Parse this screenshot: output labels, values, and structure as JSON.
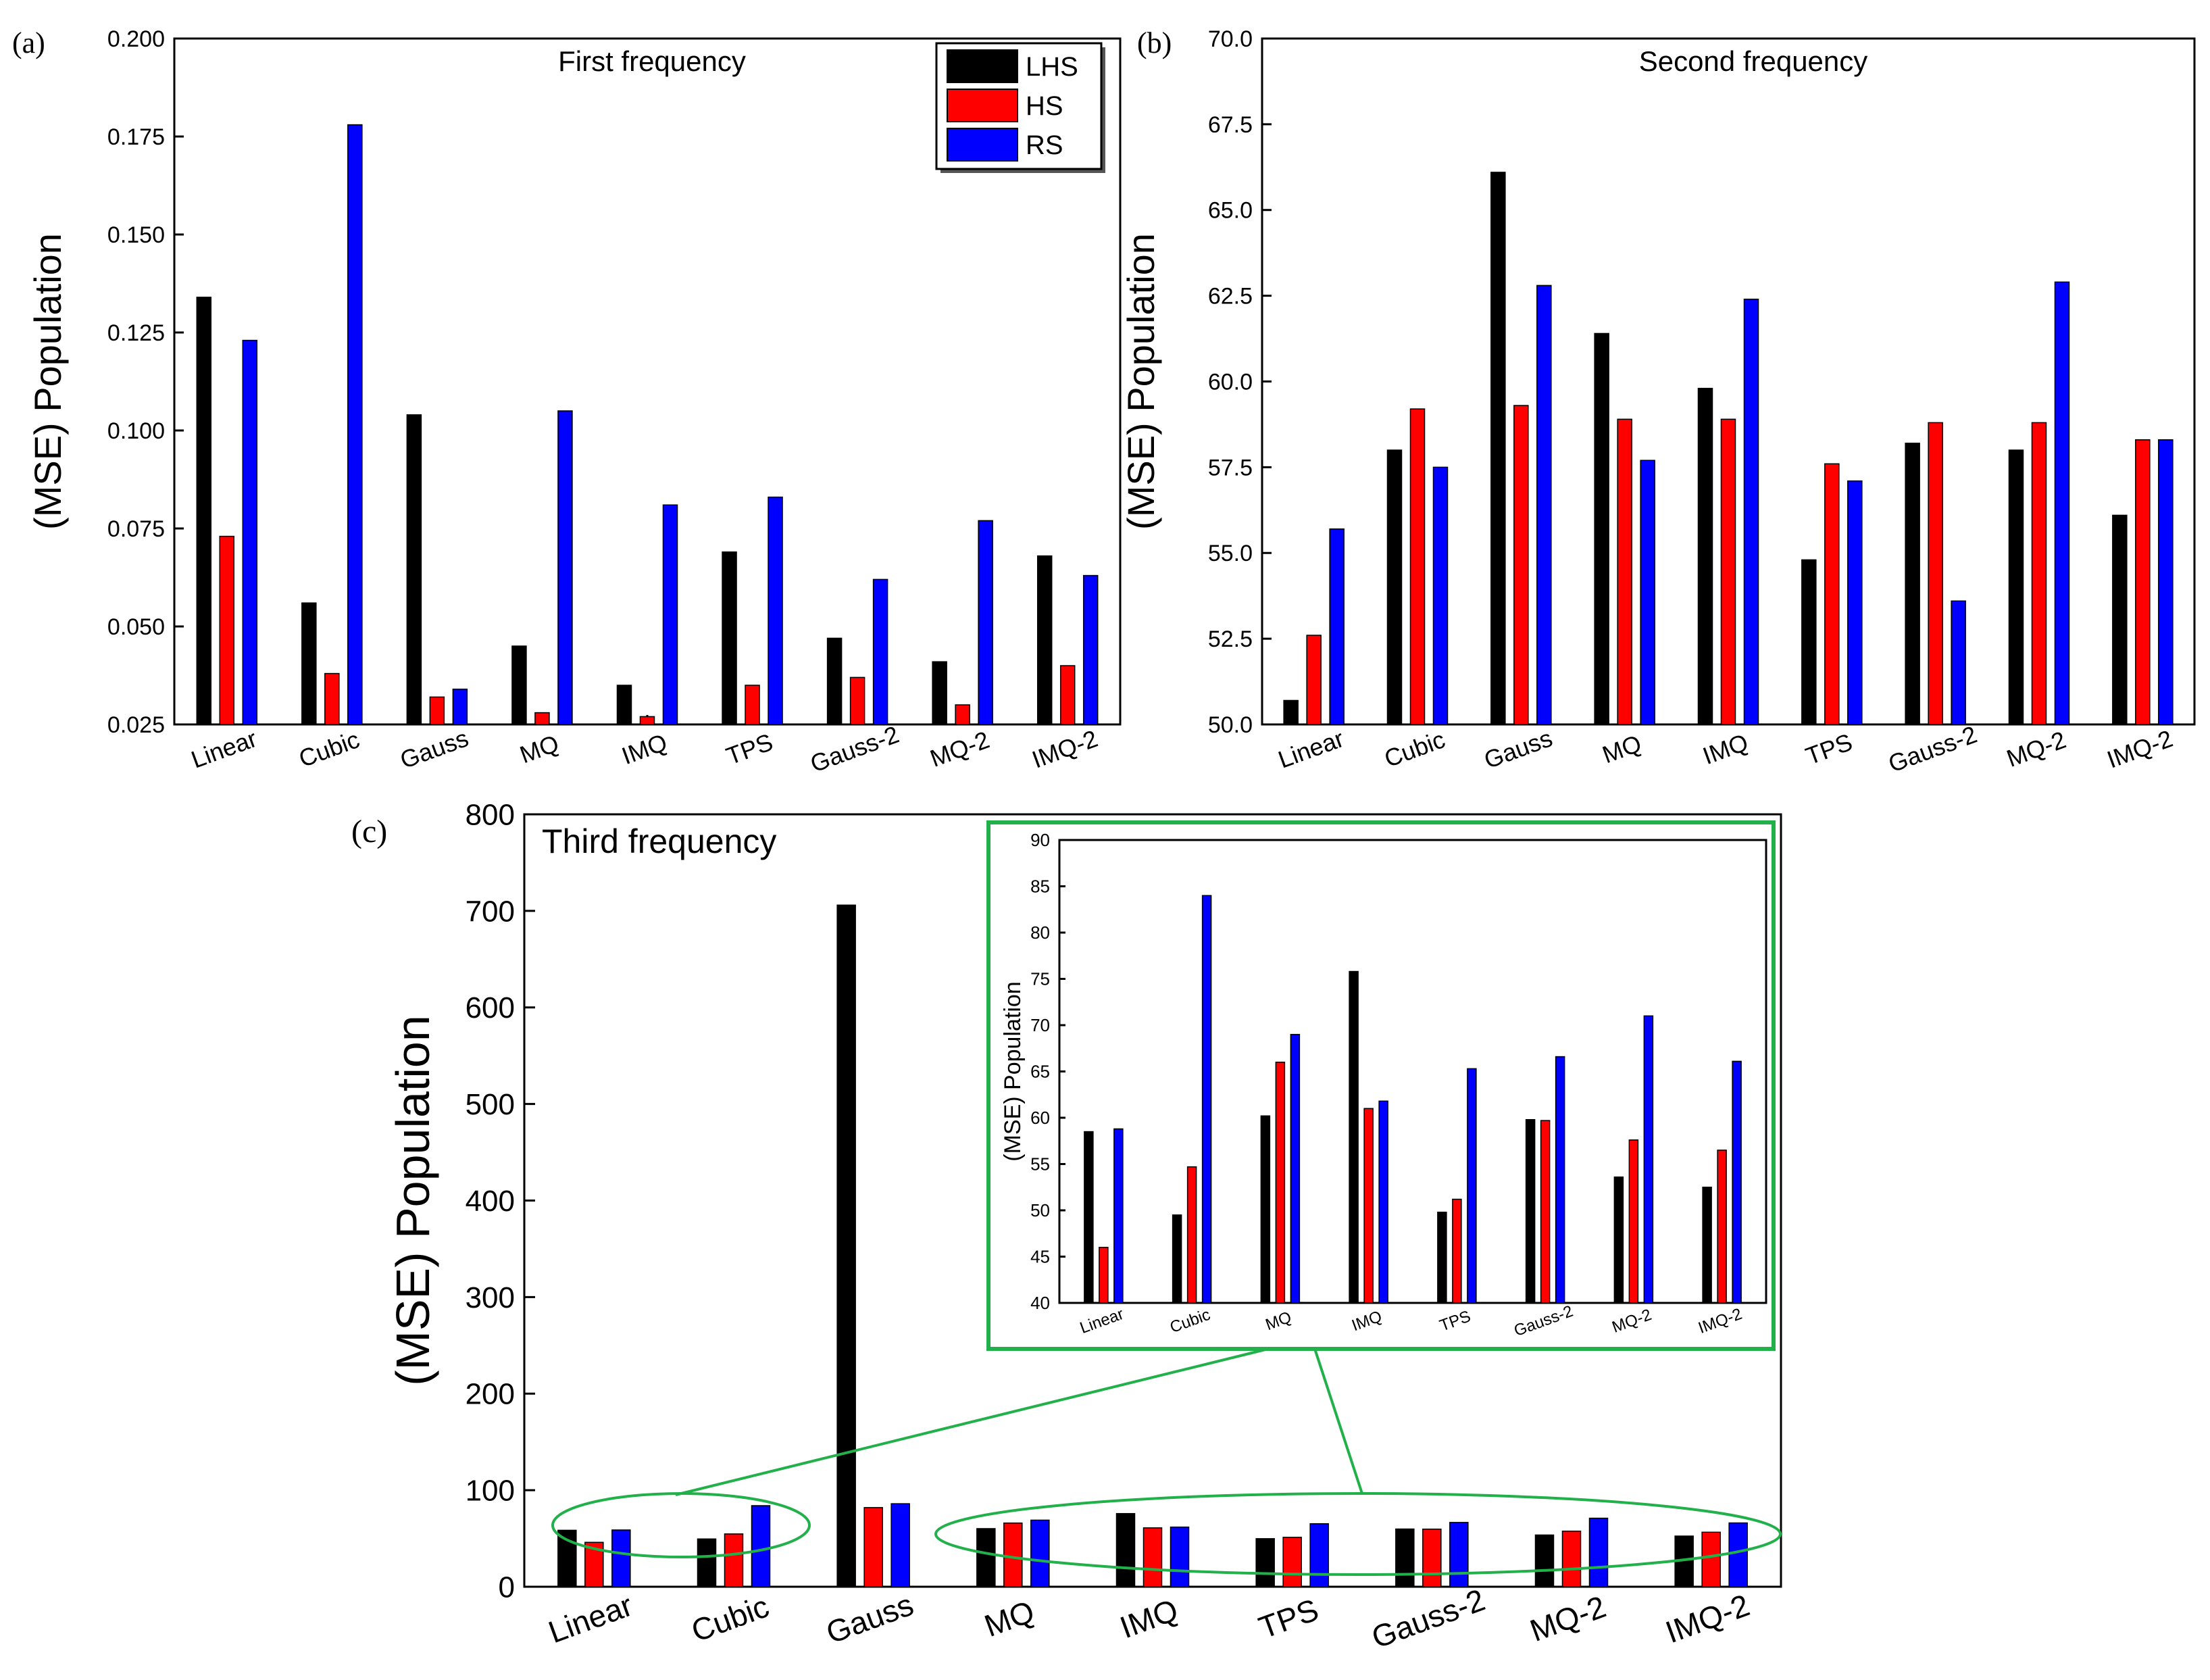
{
  "colors": {
    "LHS": "#000000",
    "HS": "#ff0000",
    "RS": "#0000ff",
    "accent": "#22b04a"
  },
  "legend": [
    "LHS",
    "HS",
    "RS"
  ],
  "chart_data": [
    {
      "id": "a",
      "panel_label": "(a)",
      "type": "bar",
      "title": "First frequency",
      "ylabel": "(MSE) Population",
      "xlabel": "",
      "ylim": [
        0.025,
        0.2
      ],
      "yticks": [
        "0.025",
        "0.050",
        "0.075",
        "0.100",
        "0.125",
        "0.150",
        "0.175",
        "0.200"
      ],
      "categories": [
        "Linear",
        "Cubic",
        "Gauss",
        "MQ",
        "IMQ",
        "TPS",
        "Gauss-2",
        "MQ-2",
        "IMQ-2"
      ],
      "series": [
        {
          "name": "LHS",
          "values": [
            0.134,
            0.056,
            0.104,
            0.045,
            0.035,
            0.069,
            0.047,
            0.041,
            0.068
          ]
        },
        {
          "name": "HS",
          "values": [
            0.073,
            0.038,
            0.032,
            0.028,
            0.027,
            0.035,
            0.037,
            0.03,
            0.04
          ]
        },
        {
          "name": "RS",
          "values": [
            0.123,
            0.178,
            0.034,
            0.105,
            0.081,
            0.083,
            0.062,
            0.077,
            0.063
          ]
        }
      ]
    },
    {
      "id": "b",
      "panel_label": "(b)",
      "type": "bar",
      "title": "Second frequency",
      "ylabel": "(MSE) Population",
      "xlabel": "",
      "ylim": [
        50,
        70
      ],
      "yticks": [
        "50.0",
        "52.5",
        "55.0",
        "57.5",
        "60.0",
        "62.5",
        "65.0",
        "67.5",
        "70.0"
      ],
      "categories": [
        "Linear",
        "Cubic",
        "Gauss",
        "MQ",
        "IMQ",
        "TPS",
        "Gauss-2",
        "MQ-2",
        "IMQ-2"
      ],
      "series": [
        {
          "name": "LHS",
          "values": [
            50.7,
            58.0,
            66.1,
            61.4,
            59.8,
            54.8,
            58.2,
            58.0,
            56.1
          ]
        },
        {
          "name": "HS",
          "values": [
            52.6,
            59.2,
            59.3,
            58.9,
            58.9,
            57.6,
            58.8,
            58.8,
            58.3
          ]
        },
        {
          "name": "RS",
          "values": [
            55.7,
            57.5,
            62.8,
            57.7,
            62.4,
            57.1,
            53.6,
            62.9,
            58.3
          ]
        }
      ]
    },
    {
      "id": "c",
      "panel_label": "(c)",
      "type": "bar",
      "title": "Third frequency",
      "ylabel": "(MSE) Population",
      "xlabel": "",
      "ylim": [
        0,
        800
      ],
      "yticks": [
        "0",
        "100",
        "200",
        "300",
        "400",
        "500",
        "600",
        "700",
        "800"
      ],
      "categories": [
        "Linear",
        "Cubic",
        "Gauss",
        "MQ",
        "IMQ",
        "TPS",
        "Gauss-2",
        "MQ-2",
        "IMQ-2"
      ],
      "series": [
        {
          "name": "LHS",
          "values": [
            58.5,
            49.5,
            706,
            60.2,
            75.8,
            49.8,
            59.8,
            53.6,
            52.5
          ]
        },
        {
          "name": "HS",
          "values": [
            46,
            54.7,
            82,
            66,
            61,
            51.2,
            59.7,
            57.6,
            56.5
          ]
        },
        {
          "name": "RS",
          "values": [
            58.8,
            84,
            86,
            69,
            61.8,
            65.3,
            66.6,
            71,
            66.1
          ]
        }
      ]
    },
    {
      "id": "c-inset",
      "type": "bar",
      "title": "",
      "ylabel": "(MSE) Population",
      "xlabel": "",
      "ylim": [
        40,
        90
      ],
      "yticks": [
        "40",
        "45",
        "50",
        "55",
        "60",
        "65",
        "70",
        "75",
        "80",
        "85",
        "90"
      ],
      "categories": [
        "Linear",
        "Cubic",
        "MQ",
        "IMQ",
        "TPS",
        "Gauss-2",
        "MQ-2",
        "IMQ-2"
      ],
      "series": [
        {
          "name": "LHS",
          "values": [
            58.5,
            49.5,
            60.2,
            75.8,
            49.8,
            59.8,
            53.6,
            52.5
          ]
        },
        {
          "name": "HS",
          "values": [
            46,
            54.7,
            66,
            61,
            51.2,
            59.7,
            57.6,
            56.5
          ]
        },
        {
          "name": "RS",
          "values": [
            58.8,
            84,
            69,
            61.8,
            65.3,
            66.6,
            71,
            66.1
          ]
        }
      ]
    }
  ]
}
